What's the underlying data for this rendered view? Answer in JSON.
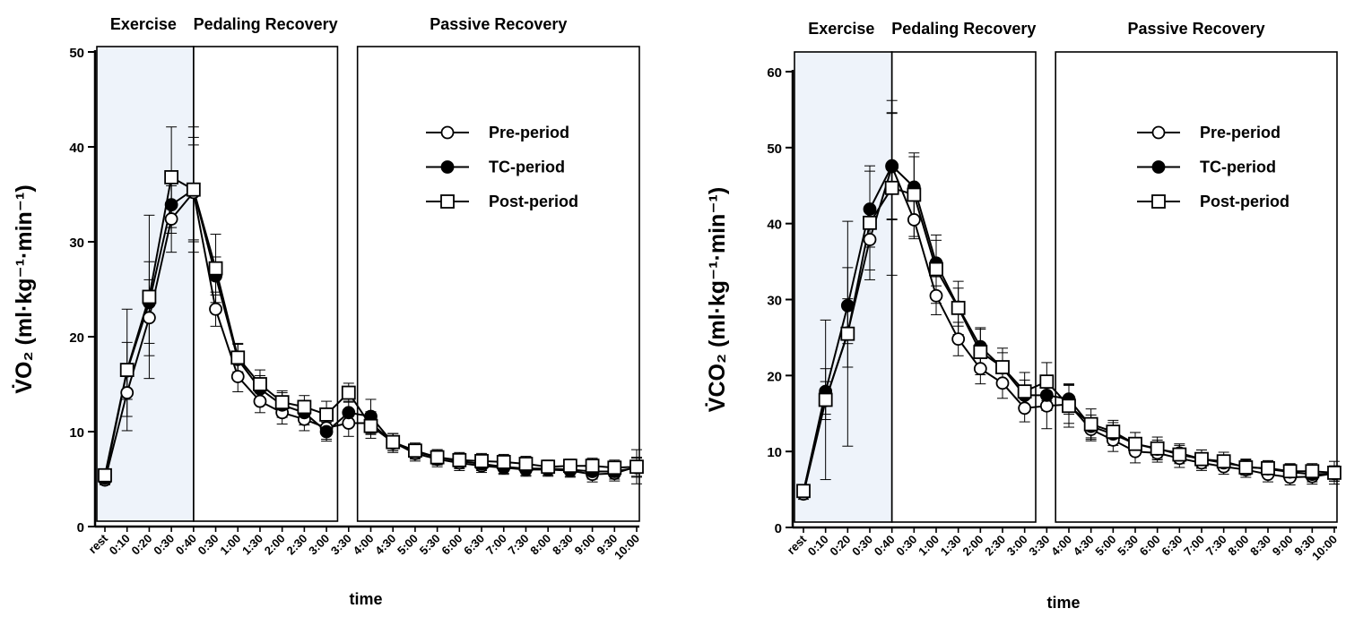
{
  "colors": {
    "exercise_fill": "#eef3fa",
    "ink": "#000000",
    "open_fill": "#ffffff"
  },
  "chart_data": [
    {
      "type": "line",
      "id": "vo2",
      "xlabel": "time",
      "ylabel": "V̇O₂ (ml·kg⁻¹·min⁻¹)",
      "ylim": [
        0,
        50
      ],
      "yticks": [
        0,
        10,
        20,
        30,
        40,
        50
      ],
      "categories": [
        "rest",
        "0:10",
        "0:20",
        "0:30",
        "0:40",
        "0:30",
        "1:00",
        "1:30",
        "2:00",
        "2:30",
        "3:00",
        "3:30",
        "4:00",
        "4:30",
        "5:00",
        "5:30",
        "6:00",
        "6:30",
        "7:00",
        "7:30",
        "8:00",
        "8:30",
        "9:00",
        "9:30",
        "10:00"
      ],
      "phases": [
        {
          "label": "Exercise",
          "from": 0,
          "to": 4,
          "shaded": true
        },
        {
          "label": "Pedaling Recovery",
          "from": 4,
          "to": 10.5,
          "shaded": false
        },
        {
          "label": "Passive Recovery",
          "from": 11.4,
          "to": 24,
          "shaded": false
        }
      ],
      "series": [
        {
          "name": "Pre-period",
          "marker": "circle-open",
          "values": [
            4.9,
            14.1,
            22.0,
            32.4,
            35.2,
            22.9,
            15.8,
            13.2,
            12.0,
            11.3,
            10.4,
            10.9,
            10.9,
            8.9,
            7.7,
            7.1,
            6.7,
            6.4,
            6.2,
            6.0,
            6.0,
            5.9,
            5.5,
            5.6,
            6.3
          ],
          "errors": [
            0.5,
            2.5,
            4.0,
            3.5,
            5.0,
            1.8,
            1.6,
            1.2,
            1.2,
            1.2,
            1.2,
            1.4,
            1.2,
            0.9,
            0.8,
            0.8,
            0.8,
            0.7,
            0.7,
            0.7,
            0.7,
            0.7,
            0.8,
            0.8,
            1.0
          ]
        },
        {
          "name": "TC-period",
          "marker": "circle-filled",
          "values": [
            5.1,
            16.4,
            23.6,
            33.9,
            35.5,
            26.4,
            17.6,
            14.5,
            12.8,
            12.0,
            10.0,
            12.0,
            11.6,
            8.8,
            7.9,
            7.3,
            6.9,
            6.6,
            6.3,
            6.1,
            6.1,
            6.0,
            5.8,
            5.8,
            6.2
          ],
          "errors": [
            0.5,
            3.0,
            4.3,
            3.0,
            5.5,
            2.0,
            1.6,
            1.4,
            1.3,
            1.3,
            1.0,
            1.2,
            1.8,
            1.0,
            0.8,
            0.8,
            0.8,
            0.7,
            0.7,
            0.7,
            0.7,
            0.7,
            0.8,
            0.8,
            1.0
          ]
        },
        {
          "name": "Post-period",
          "marker": "square-open",
          "values": [
            5.4,
            16.5,
            24.2,
            36.8,
            35.5,
            27.2,
            17.8,
            15.0,
            13.1,
            12.6,
            11.8,
            14.1,
            10.6,
            8.9,
            8.0,
            7.3,
            7.0,
            6.9,
            6.8,
            6.6,
            6.3,
            6.4,
            6.4,
            6.2,
            6.3
          ],
          "errors": [
            0.6,
            6.4,
            8.6,
            5.3,
            6.6,
            3.6,
            1.5,
            1.5,
            1.2,
            1.2,
            1.4,
            1.0,
            1.3,
            0.9,
            0.8,
            0.8,
            0.8,
            0.8,
            0.8,
            0.8,
            0.7,
            0.7,
            0.8,
            0.8,
            1.8
          ]
        }
      ]
    },
    {
      "type": "line",
      "id": "vco2",
      "xlabel": "time",
      "ylabel": "V̇CO₂ (ml·kg⁻¹·min⁻¹)",
      "ylim": [
        0,
        60
      ],
      "yticks": [
        0,
        10,
        20,
        30,
        40,
        50,
        60
      ],
      "categories": [
        "rest",
        "0:10",
        "0:20",
        "0:30",
        "0:40",
        "0:30",
        "1:00",
        "1:30",
        "2:00",
        "2:30",
        "3:00",
        "3:30",
        "4:00",
        "4:30",
        "5:00",
        "5:30",
        "6:00",
        "6:30",
        "7:00",
        "7:30",
        "8:00",
        "8:30",
        "9:00",
        "9:30",
        "10:00"
      ],
      "phases": [
        {
          "label": "Exercise",
          "from": 0,
          "to": 4,
          "shaded": true
        },
        {
          "label": "Pedaling Recovery",
          "from": 4,
          "to": 10.5,
          "shaded": false
        },
        {
          "label": "Passive Recovery",
          "from": 11.4,
          "to": 24,
          "shaded": false
        }
      ],
      "series": [
        {
          "name": "Pre-period",
          "marker": "circle-open",
          "values": [
            4.4,
            16.7,
            25.6,
            37.9,
            47.5,
            40.5,
            30.5,
            24.8,
            20.9,
            19.0,
            15.7,
            16.0,
            16.2,
            12.9,
            11.5,
            10.0,
            9.8,
            9.1,
            8.5,
            8.0,
            7.6,
            7.0,
            6.6,
            6.7,
            7.1
          ],
          "errors": [
            0.7,
            2.5,
            4.5,
            4.0,
            7.0,
            2.5,
            2.5,
            2.2,
            2.0,
            2.0,
            1.8,
            3.0,
            2.5,
            1.5,
            1.5,
            1.5,
            1.2,
            1.2,
            1.0,
            1.0,
            1.0,
            1.0,
            1.0,
            1.0,
            1.0
          ]
        },
        {
          "name": "TC-period",
          "marker": "circle-filled",
          "values": [
            4.7,
            17.9,
            29.2,
            41.9,
            47.6,
            44.8,
            34.8,
            29.0,
            23.8,
            21.0,
            17.4,
            17.4,
            16.9,
            13.3,
            12.3,
            11.0,
            10.3,
            9.8,
            9.0,
            8.5,
            8.0,
            7.7,
            7.3,
            7.0,
            7.1
          ],
          "errors": [
            0.7,
            3.0,
            5.0,
            5.0,
            7.0,
            4.0,
            3.0,
            2.5,
            2.5,
            2.0,
            2.0,
            2.0,
            2.0,
            1.5,
            1.5,
            1.5,
            1.2,
            1.2,
            1.2,
            1.0,
            1.0,
            1.0,
            1.0,
            1.0,
            1.0
          ]
        },
        {
          "name": "Post-period",
          "marker": "square-open",
          "values": [
            4.8,
            16.8,
            25.5,
            40.1,
            44.7,
            43.8,
            34.0,
            28.9,
            23.1,
            21.1,
            17.9,
            19.2,
            16.0,
            13.6,
            12.6,
            11.0,
            10.4,
            9.6,
            9.0,
            8.7,
            7.9,
            7.8,
            7.4,
            7.4,
            7.2
          ],
          "errors": [
            0.7,
            10.5,
            14.8,
            7.5,
            11.5,
            5.5,
            4.5,
            3.5,
            3.0,
            2.5,
            2.5,
            2.5,
            2.8,
            2.0,
            1.5,
            1.5,
            1.5,
            1.2,
            1.2,
            1.2,
            1.0,
            1.0,
            1.0,
            1.0,
            1.5
          ]
        }
      ]
    }
  ]
}
